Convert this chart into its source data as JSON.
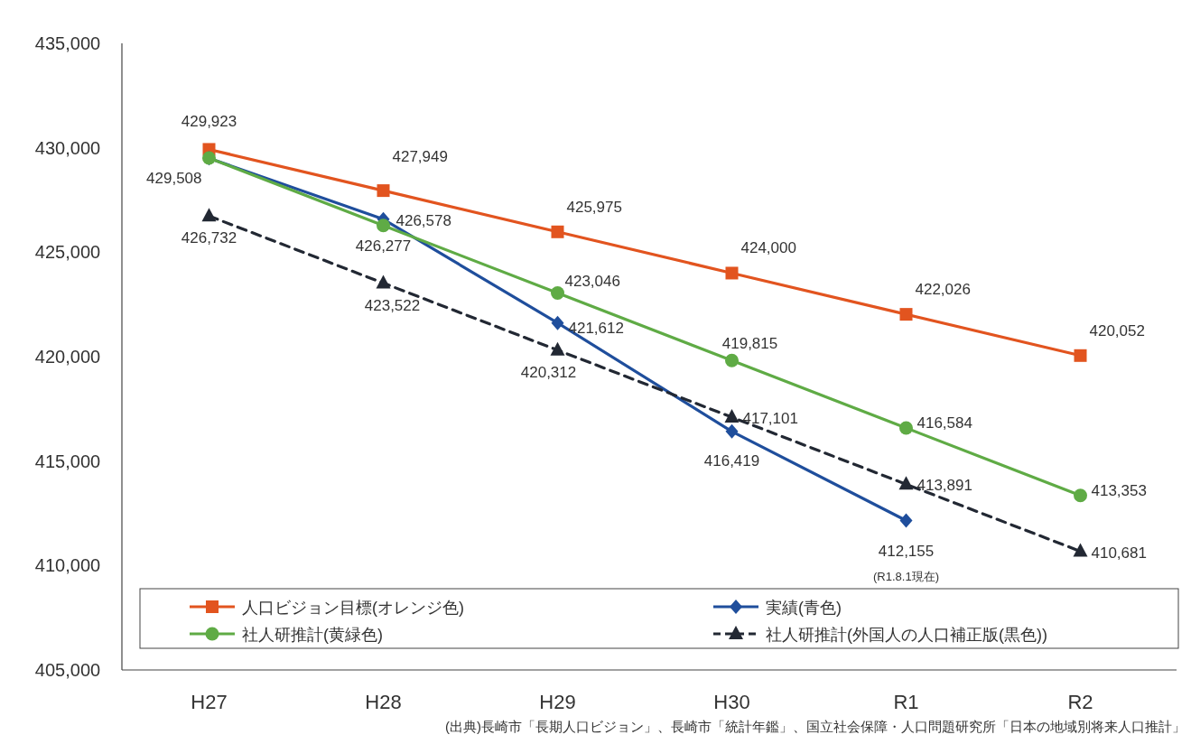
{
  "chart_data": {
    "type": "line",
    "categories": [
      "H27",
      "H28",
      "H29",
      "H30",
      "R1",
      "R2"
    ],
    "ylim": [
      405000,
      435000
    ],
    "yticks": [
      {
        "value": 405000,
        "label": "405,000"
      },
      {
        "value": 410000,
        "label": "410,000"
      },
      {
        "value": 415000,
        "label": "415,000"
      },
      {
        "value": 420000,
        "label": "420,000"
      },
      {
        "value": 425000,
        "label": "425,000"
      },
      {
        "value": 430000,
        "label": "430,000"
      },
      {
        "value": 435000,
        "label": "435,000"
      }
    ],
    "grid": false,
    "legend": "bottom",
    "series": [
      {
        "name": "人口ビジョン目標(オレンジ色)",
        "color": "#e2541f",
        "marker": "square",
        "line_style": "solid",
        "values": [
          429923,
          427949,
          425975,
          424000,
          422026,
          420052
        ],
        "value_labels": [
          "429,923",
          "427,949",
          "425,975",
          "424,000",
          "422,026",
          "420,052"
        ]
      },
      {
        "name": "実績(青色)",
        "color": "#1f4e9c",
        "marker": "diamond",
        "line_style": "solid",
        "values": [
          429500,
          426578,
          421612,
          416419,
          412155,
          null
        ],
        "value_labels": [
          null,
          "426,578",
          "421,612",
          "416,419",
          "412,155",
          null
        ]
      },
      {
        "name": "社人研推計(黄緑色)",
        "color": "#5fab45",
        "marker": "circle",
        "line_style": "solid",
        "values": [
          429508,
          426277,
          423046,
          419815,
          416584,
          413353
        ],
        "value_labels": [
          "429,508",
          "426,277",
          "423,046",
          "419,815",
          "416,584",
          "413,353"
        ]
      },
      {
        "name": "社人研推計(外国人の人口補正版(黒色))",
        "color": "#222833",
        "marker": "triangle",
        "line_style": "dashed",
        "values": [
          426732,
          423522,
          420312,
          417101,
          413891,
          410681
        ],
        "value_labels": [
          "426,732",
          "423,522",
          "420,312",
          "417,101",
          "413,891",
          "410,681"
        ]
      }
    ],
    "annotations": [
      "(R1.8.1現在)",
      "(出典)長崎市「長期人口ビジョン」、長崎市「統計年鑑」、国立社会保障・人口問題研究所「日本の地域別将来人口推計」"
    ]
  }
}
